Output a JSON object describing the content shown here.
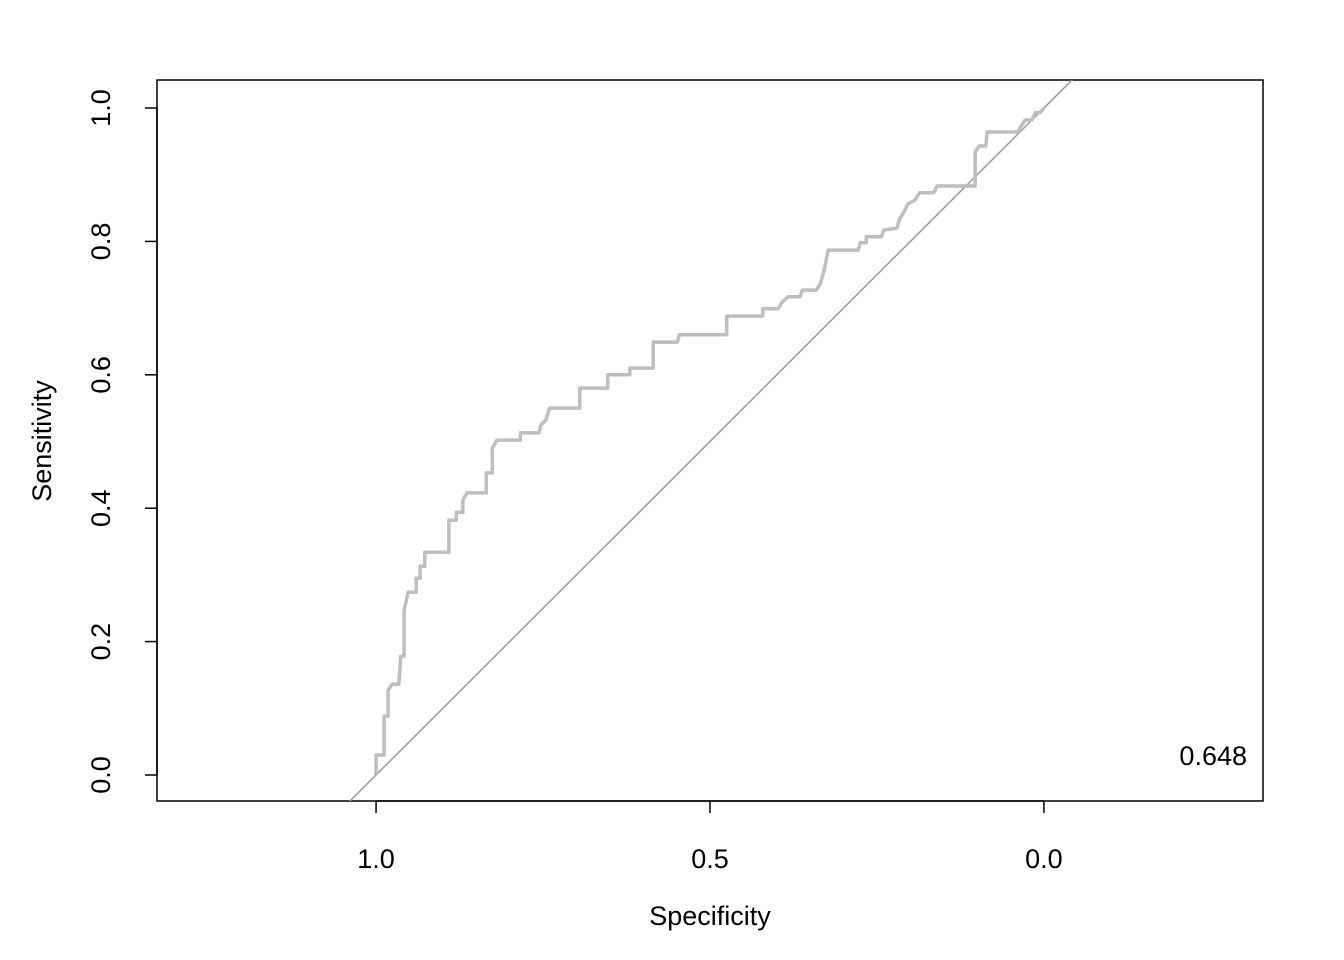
{
  "chart_data": {
    "type": "line",
    "x_label": "Specificity",
    "y_label": "Sensitivity",
    "annotation": "0.648",
    "color": "#bebebe",
    "reference_color": "#999999",
    "xlim": [
      1.328,
      -0.328
    ],
    "ylim": [
      -0.039,
      1.042
    ],
    "xticks": [
      {
        "value": 1,
        "label": "1.0"
      },
      {
        "value": 0.5,
        "label": "0.5"
      },
      {
        "value": 0,
        "label": "0.0"
      }
    ],
    "yticks": [
      {
        "value": 0,
        "label": "0.0"
      },
      {
        "value": 0.2,
        "label": "0.2"
      },
      {
        "value": 0.4,
        "label": "0.4"
      },
      {
        "value": 0.6,
        "label": "0.6"
      },
      {
        "value": 0.8,
        "label": "0.8"
      },
      {
        "value": 1,
        "label": "1.0"
      }
    ],
    "x": [
      1.0,
      1.0,
      0.988,
      0.988,
      0.982,
      0.982,
      0.976,
      0.966,
      0.963,
      0.958,
      0.958,
      0.952,
      0.94,
      0.94,
      0.934,
      0.934,
      0.927,
      0.927,
      0.891,
      0.891,
      0.88,
      0.88,
      0.87,
      0.87,
      0.864,
      0.835,
      0.835,
      0.826,
      0.826,
      0.819,
      0.784,
      0.784,
      0.756,
      0.753,
      0.746,
      0.74,
      0.695,
      0.695,
      0.653,
      0.653,
      0.62,
      0.62,
      0.585,
      0.585,
      0.549,
      0.546,
      0.475,
      0.475,
      0.421,
      0.421,
      0.398,
      0.392,
      0.383,
      0.365,
      0.362,
      0.341,
      0.335,
      0.329,
      0.323,
      0.278,
      0.275,
      0.266,
      0.266,
      0.243,
      0.24,
      0.22,
      0.217,
      0.208,
      0.204,
      0.193,
      0.186,
      0.165,
      0.16,
      0.103,
      0.103,
      0.097,
      0.087,
      0.085,
      0.039,
      0.036,
      0.028,
      0.018,
      0.013,
      0.006,
      0
    ],
    "values": [
      0,
      0.03,
      0.03,
      0.088,
      0.088,
      0.127,
      0.136,
      0.136,
      0.178,
      0.178,
      0.247,
      0.274,
      0.274,
      0.295,
      0.295,
      0.313,
      0.313,
      0.334,
      0.334,
      0.382,
      0.382,
      0.394,
      0.394,
      0.412,
      0.423,
      0.423,
      0.453,
      0.453,
      0.49,
      0.502,
      0.502,
      0.513,
      0.513,
      0.525,
      0.532,
      0.55,
      0.55,
      0.58,
      0.58,
      0.6,
      0.6,
      0.61,
      0.61,
      0.649,
      0.649,
      0.66,
      0.66,
      0.688,
      0.688,
      0.699,
      0.699,
      0.709,
      0.717,
      0.717,
      0.727,
      0.727,
      0.736,
      0.757,
      0.787,
      0.787,
      0.798,
      0.798,
      0.807,
      0.807,
      0.817,
      0.82,
      0.832,
      0.847,
      0.856,
      0.862,
      0.873,
      0.873,
      0.883,
      0.883,
      0.934,
      0.943,
      0.943,
      0.964,
      0.964,
      0.97,
      0.982,
      0.982,
      0.993,
      0.993,
      1
    ]
  }
}
